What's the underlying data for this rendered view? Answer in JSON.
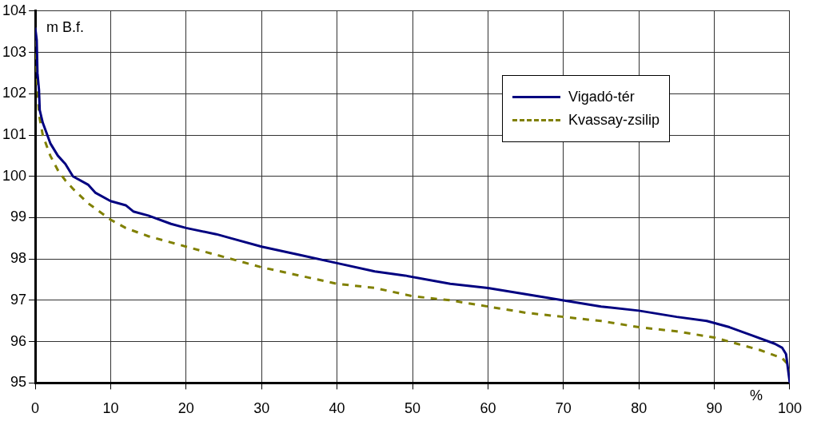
{
  "chart_data": {
    "type": "line",
    "xlabel": "%",
    "ylabel": "m B.f.",
    "xlim": [
      0,
      100
    ],
    "xticks": [
      0,
      10,
      20,
      30,
      40,
      50,
      60,
      70,
      80,
      90,
      100
    ],
    "ylim": [
      95,
      104
    ],
    "yticks": [
      95,
      96,
      97,
      98,
      99,
      100,
      101,
      102,
      103,
      104
    ],
    "grid": true,
    "legend": "top right",
    "marker": "none",
    "series": [
      {
        "name": "Vigadó-tér",
        "color": "#000080",
        "line_style": "solid",
        "x": [
          0,
          0.2,
          0.3,
          0.5,
          0.6,
          1,
          2,
          3,
          4,
          5,
          7,
          8,
          10,
          12,
          13,
          15,
          18,
          20,
          24,
          26,
          30,
          35,
          40,
          45,
          49,
          55,
          60,
          65,
          70,
          75,
          80,
          85,
          89,
          92,
          95,
          98,
          99,
          99.5,
          100
        ],
        "values": [
          103.6,
          103.3,
          102.5,
          102.1,
          101.6,
          101.3,
          100.8,
          100.5,
          100.3,
          100,
          99.8,
          99.6,
          99.4,
          99.3,
          99.15,
          99.05,
          98.85,
          98.75,
          98.6,
          98.5,
          98.3,
          98.1,
          97.9,
          97.7,
          97.6,
          97.4,
          97.3,
          97.15,
          97.0,
          96.85,
          96.75,
          96.6,
          96.5,
          96.35,
          96.15,
          95.95,
          95.85,
          95.7,
          95.0
        ]
      },
      {
        "name": "Kvassay-zsilip",
        "color": "#808000",
        "line_style": "dashed",
        "x": [
          0,
          0.2,
          0.5,
          1,
          2,
          3,
          4,
          5,
          7,
          10,
          12,
          15,
          20,
          25,
          27,
          30,
          35,
          40,
          45,
          50,
          55,
          60,
          65,
          70,
          75,
          80,
          85,
          90,
          93,
          96,
          99,
          100,
          100
        ],
        "values": [
          103.6,
          102.5,
          101.5,
          101,
          100.5,
          100.15,
          99.9,
          99.7,
          99.35,
          98.95,
          98.75,
          98.55,
          98.3,
          98.05,
          97.95,
          97.8,
          97.6,
          97.4,
          97.3,
          97.1,
          97.0,
          96.85,
          96.7,
          96.6,
          96.5,
          96.35,
          96.25,
          96.1,
          95.95,
          95.8,
          95.6,
          95.4,
          95.2
        ]
      }
    ]
  }
}
